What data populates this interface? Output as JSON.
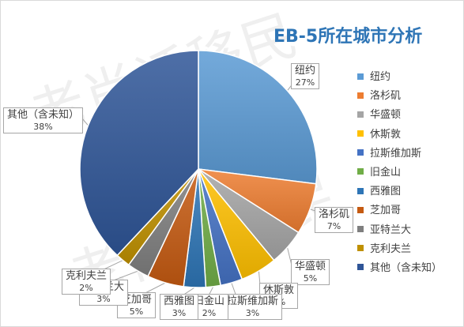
{
  "watermark": {
    "line1": "老肖话移民",
    "line2": "老肖话移民"
  },
  "chart_data": {
    "type": "pie",
    "title": "EB-5所在城市分析",
    "legend_position": "right",
    "slices": [
      {
        "name": "纽约",
        "value": 27,
        "label": "27%",
        "color": "#5b9bd5"
      },
      {
        "name": "洛杉矶",
        "value": 7,
        "label": "7%",
        "color": "#ed7d31"
      },
      {
        "name": "华盛顿",
        "value": 5,
        "label": "5%",
        "color": "#a5a5a5"
      },
      {
        "name": "休斯敦",
        "value": 5,
        "label": "5%",
        "color": "#ffc000"
      },
      {
        "name": "拉斯维加斯",
        "value": 3,
        "label": "3%",
        "color": "#4472c4"
      },
      {
        "name": "旧金山",
        "value": 2,
        "label": "2%",
        "color": "#70ad47"
      },
      {
        "name": "西雅图",
        "value": 3,
        "label": "3%",
        "color": "#2e75b6"
      },
      {
        "name": "芝加哥",
        "value": 5,
        "label": "5%",
        "color": "#c55a11"
      },
      {
        "name": "亚特兰大",
        "value": 3,
        "label": "3%",
        "color": "#7f7f7f"
      },
      {
        "name": "克利夫兰",
        "value": 2,
        "label": "2%",
        "color": "#bf9000"
      },
      {
        "name": "其他（含未知）",
        "value": 38,
        "label": "38%",
        "color": "#2f5597"
      }
    ]
  }
}
